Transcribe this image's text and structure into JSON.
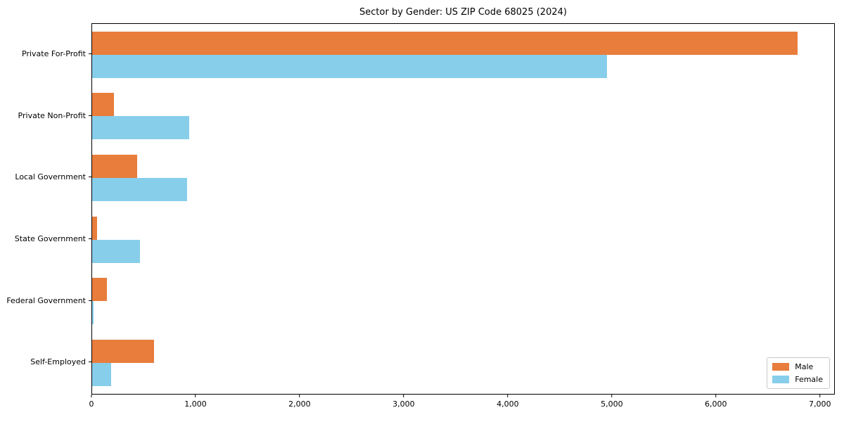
{
  "title": "Sector by Gender: US ZIP Code 68025 (2024)",
  "chart_data": {
    "type": "bar",
    "orientation": "horizontal",
    "title": "Sector by Gender: US ZIP Code 68025 (2024)",
    "categories": [
      "Private For-Profit",
      "Private Non-Profit",
      "Local Government",
      "State Government",
      "Federal Government",
      "Self-Employed"
    ],
    "series": [
      {
        "name": "Male",
        "color": "#e87d3c",
        "values": [
          6780,
          210,
          435,
          48,
          145,
          595
        ]
      },
      {
        "name": "Female",
        "color": "#87ceeb",
        "values": [
          4950,
          930,
          915,
          460,
          15,
          185
        ]
      }
    ],
    "xlabel": "",
    "ylabel": "",
    "xlim": [
      0,
      7130
    ],
    "xticks": [
      0,
      1000,
      2000,
      3000,
      4000,
      5000,
      6000,
      7000
    ],
    "xtick_labels": [
      "0",
      "1,000",
      "2,000",
      "3,000",
      "4,000",
      "5,000",
      "6,000",
      "7,000"
    ],
    "grid": false,
    "legend": {
      "position": "lower-right",
      "entries": [
        "Male",
        "Female"
      ]
    }
  },
  "colors": {
    "male": "#e87d3c",
    "female": "#87ceeb",
    "spine": "#000000",
    "background": "#ffffff"
  }
}
